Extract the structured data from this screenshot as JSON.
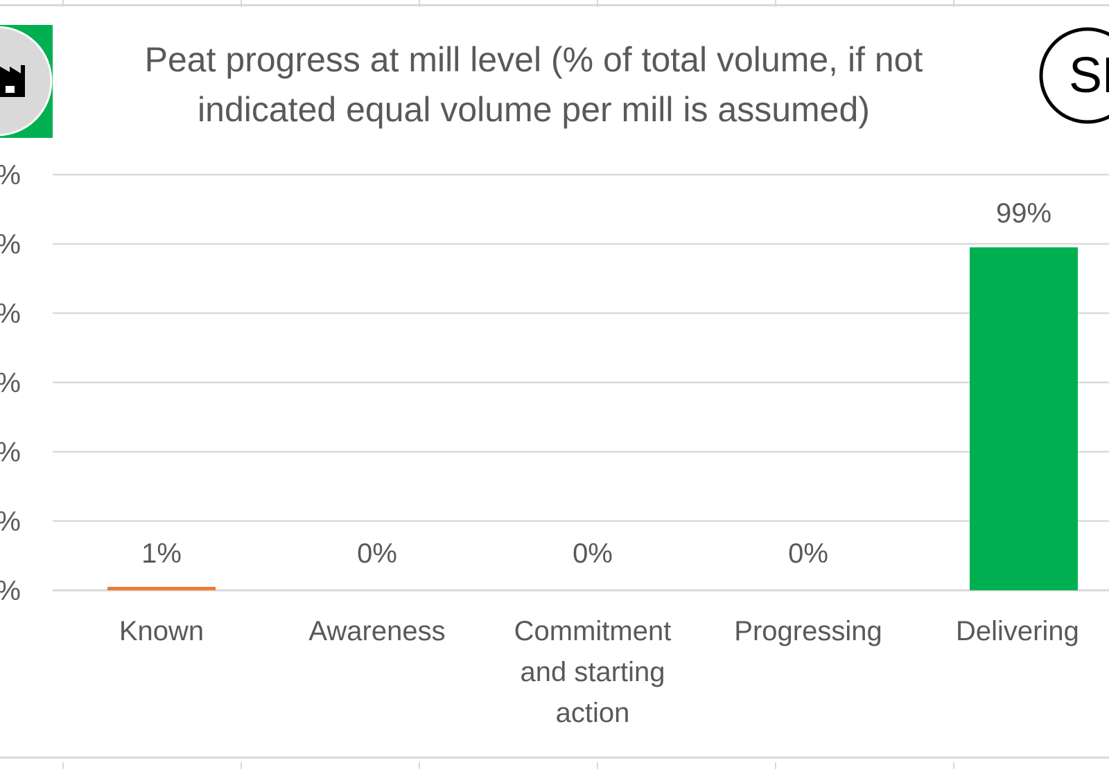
{
  "colors": {
    "gridline": "#d9d9d9",
    "text": "#595959",
    "known": "#ed7d31",
    "delivering": "#00b050",
    "icon_circle": "#d9d9d9"
  },
  "icons": [
    "factory-icon",
    "logo-circle-icon"
  ],
  "logo_text": "SP",
  "chart_data": {
    "type": "bar",
    "title": "Peat progress at mill level (% of total volume, if not indicated equal volume per mill is assumed)",
    "title_lines": [
      "Peat progress at mill level (% of total volume, if not",
      "indicated equal volume per mill is assumed)"
    ],
    "categories": [
      "Known",
      "Awareness",
      "Commitment and starting action",
      "Progressing",
      "Delivering"
    ],
    "category_lines": [
      [
        "Known"
      ],
      [
        "Awareness"
      ],
      [
        "Commitment",
        "and starting",
        "action"
      ],
      [
        "Progressing"
      ],
      [
        "Delivering"
      ]
    ],
    "values": [
      1,
      0,
      0,
      0,
      99
    ],
    "data_labels": [
      "1%",
      "0%",
      "0%",
      "0%",
      "99%"
    ],
    "y_tick_labels": [
      "%",
      "%",
      "%",
      "%",
      "%",
      "%",
      "%"
    ],
    "ylim": [
      0,
      120
    ],
    "grid": true,
    "legend": "none"
  }
}
